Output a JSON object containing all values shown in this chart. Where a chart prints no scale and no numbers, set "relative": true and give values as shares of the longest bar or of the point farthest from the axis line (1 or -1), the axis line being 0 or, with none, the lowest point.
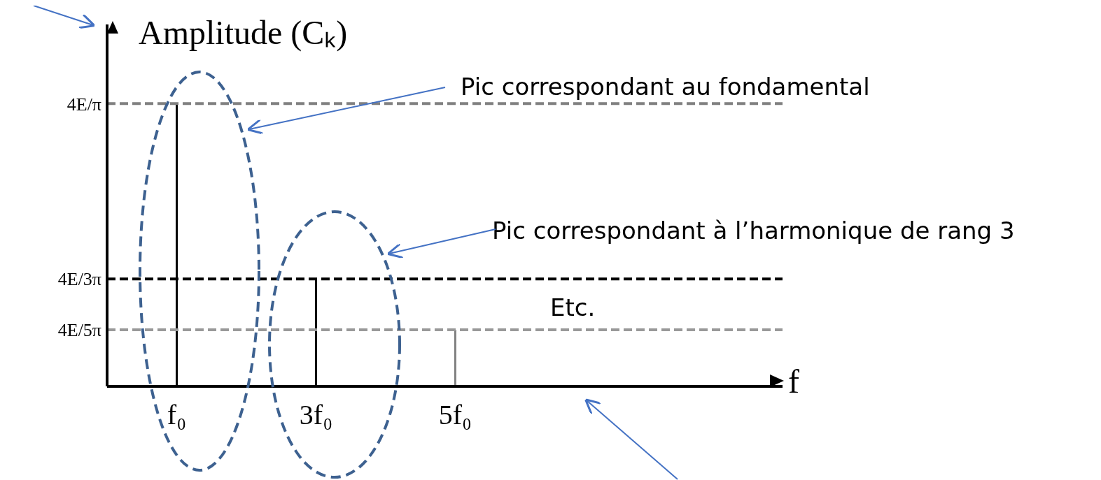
{
  "chart_data": {
    "type": "bar",
    "relative": true,
    "ylabel": "Amplitude (Cₖ)",
    "xlabel": "f",
    "x": [
      1,
      3,
      5
    ],
    "values": [
      1,
      0.38,
      0.2
    ],
    "colors": [
      "#000000",
      "#000000",
      "#808080"
    ],
    "xlim": [
      0,
      9.7
    ],
    "xticks": [
      {
        "value": 1,
        "label": "f₀"
      },
      {
        "value": 3,
        "label": "3f₀"
      },
      {
        "value": 5,
        "label": "5f₀"
      }
    ],
    "ref_lines": [
      {
        "axis": "y",
        "value": 1,
        "label": "4E/π",
        "color": "#808080",
        "line_style": "dashed"
      },
      {
        "axis": "y",
        "value": 0.38,
        "label": "4E/3π",
        "color": "#000000",
        "line_style": "dashed"
      },
      {
        "axis": "y",
        "value": 0.2,
        "label": "4E/5π",
        "color": "#999999",
        "line_style": "dashed"
      }
    ],
    "annotations": [
      "Pic correspondant au fondamental",
      "Pic correspondant à l’harmonique de rang 3",
      "Etc."
    ],
    "grid": false,
    "legend": false
  }
}
